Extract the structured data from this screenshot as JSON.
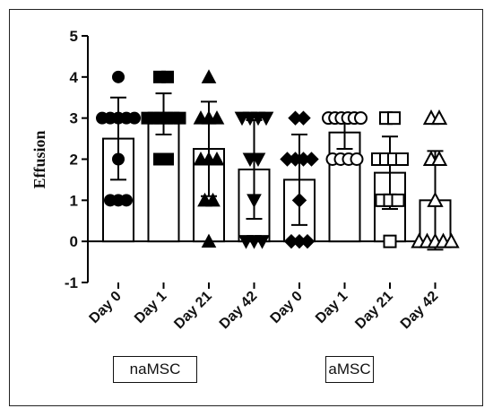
{
  "chart_data": {
    "type": "bar",
    "ylabel": "Effusion",
    "xlabel": "",
    "title": "",
    "ylim": [
      -1,
      5
    ],
    "yticks": [
      5,
      4,
      3,
      2,
      1,
      0,
      -1
    ],
    "categories": [
      "Day 0",
      "Day 1",
      "Day 21",
      "Day 42",
      "Day 0",
      "Day 1",
      "Day 21",
      "Day 42"
    ],
    "groups": [
      {
        "label": "naMSC",
        "category_indices": [
          0,
          1,
          2,
          3
        ]
      },
      {
        "label": "aMSC",
        "category_indices": [
          4,
          5,
          6,
          7
        ]
      }
    ],
    "bars": [
      {
        "category": "Day 0",
        "group": "naMSC",
        "mean": 2.5,
        "sd": 1.0,
        "marker": "circle",
        "points": [
          4,
          3,
          3,
          3,
          3,
          3,
          2,
          1,
          1,
          1
        ]
      },
      {
        "category": "Day 1",
        "group": "naMSC",
        "mean": 3.1,
        "sd": 0.5,
        "marker": "square",
        "points": [
          4,
          4,
          3,
          3,
          3,
          3,
          3,
          3,
          2,
          2
        ]
      },
      {
        "category": "Day 21",
        "group": "naMSC",
        "mean": 2.25,
        "sd": 1.15,
        "marker": "triangle-up",
        "points": [
          4,
          3,
          3,
          3,
          2,
          2,
          2,
          1,
          1,
          0
        ]
      },
      {
        "category": "Day 42",
        "group": "naMSC",
        "mean": 1.75,
        "sd": 1.2,
        "marker": "triangle-down",
        "points": [
          3,
          3,
          3,
          3,
          2,
          2,
          1,
          0,
          0,
          0
        ]
      },
      {
        "category": "Day 0",
        "group": "aMSC",
        "mean": 1.5,
        "sd": 1.1,
        "marker": "diamond",
        "points": [
          3,
          3,
          2,
          2,
          2,
          2,
          1,
          0,
          0,
          0
        ]
      },
      {
        "category": "Day 1",
        "group": "aMSC",
        "mean": 2.65,
        "sd": 0.4,
        "marker": "circle-open",
        "points": [
          3,
          3,
          3,
          3,
          3,
          3,
          2,
          2,
          2,
          2
        ]
      },
      {
        "category": "Day 21",
        "group": "aMSC",
        "mean": 1.67,
        "sd": 0.88,
        "marker": "square-open",
        "points": [
          3,
          3,
          2,
          2,
          2,
          2,
          1,
          1,
          1,
          0
        ]
      },
      {
        "category": "Day 42",
        "group": "aMSC",
        "mean": 1.0,
        "sd": 1.2,
        "marker": "triangle-up-open",
        "points": [
          3,
          3,
          2,
          2,
          1,
          0,
          0,
          0,
          0,
          0
        ]
      }
    ],
    "grid": false,
    "colors": {
      "bar_fill": "#ffffff",
      "stroke": "#000000"
    }
  }
}
